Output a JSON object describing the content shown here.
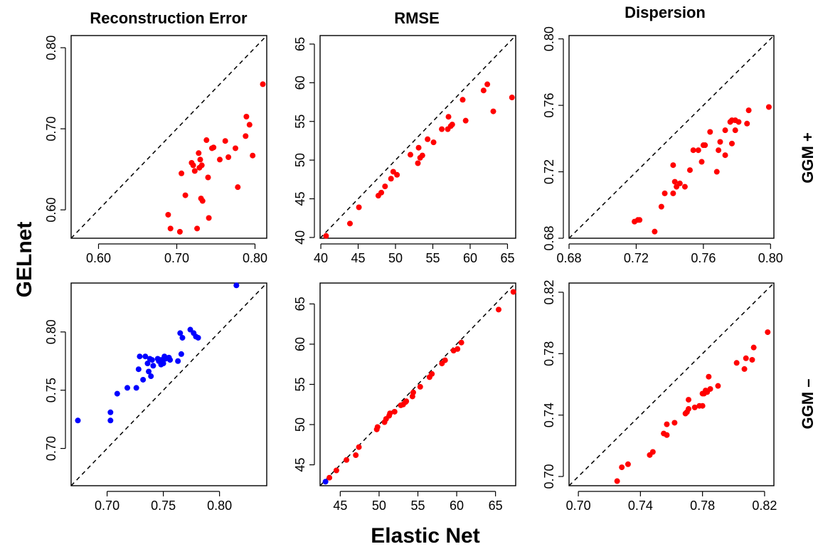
{
  "figure": {
    "xlabel": "Elastic Net",
    "ylabel": "GELnet",
    "column_titles": [
      "Reconstruction Error",
      "RMSE",
      "Dispersion"
    ],
    "row_labels": [
      "GGM +",
      "GGM –"
    ]
  },
  "colors": {
    "red": "#ff0000",
    "blue": "#0000ff"
  },
  "chart_data": [
    {
      "type": "scatter",
      "title": "Reconstruction Error",
      "row": "GGM +",
      "xlim": [
        0.565,
        0.815
      ],
      "ylim": [
        0.565,
        0.815
      ],
      "xticks": [
        0.6,
        0.7,
        0.8
      ],
      "yticks": [
        0.6,
        0.7,
        0.8
      ],
      "xtick_labels": [
        "0.60",
        "0.70",
        "0.80"
      ],
      "ytick_labels": [
        "0.60",
        "0.70",
        "0.80"
      ],
      "diagonal": true,
      "color": "#ff0000",
      "points": [
        [
          0.689,
          0.594
        ],
        [
          0.692,
          0.577
        ],
        [
          0.704,
          0.573
        ],
        [
          0.706,
          0.645
        ],
        [
          0.711,
          0.618
        ],
        [
          0.719,
          0.658
        ],
        [
          0.721,
          0.655
        ],
        [
          0.723,
          0.648
        ],
        [
          0.726,
          0.577
        ],
        [
          0.728,
          0.67
        ],
        [
          0.729,
          0.652
        ],
        [
          0.73,
          0.662
        ],
        [
          0.731,
          0.614
        ],
        [
          0.732,
          0.655
        ],
        [
          0.733,
          0.611
        ],
        [
          0.738,
          0.686
        ],
        [
          0.74,
          0.64
        ],
        [
          0.741,
          0.59
        ],
        [
          0.745,
          0.676
        ],
        [
          0.747,
          0.677
        ],
        [
          0.755,
          0.662
        ],
        [
          0.762,
          0.685
        ],
        [
          0.766,
          0.665
        ],
        [
          0.775,
          0.676
        ],
        [
          0.778,
          0.628
        ],
        [
          0.788,
          0.691
        ],
        [
          0.789,
          0.715
        ],
        [
          0.793,
          0.705
        ],
        [
          0.797,
          0.667
        ],
        [
          0.81,
          0.755
        ]
      ]
    },
    {
      "type": "scatter",
      "title": "RMSE",
      "row": "GGM +",
      "xlim": [
        39.9,
        66.1
      ],
      "ylim": [
        39.9,
        66.1
      ],
      "xticks": [
        40,
        45,
        50,
        55,
        60,
        65
      ],
      "yticks": [
        40,
        45,
        50,
        55,
        60,
        65
      ],
      "xtick_labels": [
        "40",
        "45",
        "50",
        "55",
        "60",
        "65"
      ],
      "ytick_labels": [
        "40",
        "45",
        "50",
        "55",
        "60",
        "65"
      ],
      "diagonal": true,
      "color": "#ff0000",
      "points": [
        [
          40.7,
          40.2
        ],
        [
          43.9,
          41.8
        ],
        [
          45.1,
          43.9
        ],
        [
          47.7,
          45.4
        ],
        [
          48.1,
          45.8
        ],
        [
          48.6,
          46.6
        ],
        [
          49.4,
          47.6
        ],
        [
          49.7,
          48.5
        ],
        [
          50.2,
          48.1
        ],
        [
          52.0,
          50.7
        ],
        [
          53.0,
          49.6
        ],
        [
          53.1,
          51.6
        ],
        [
          53.3,
          50.3
        ],
        [
          53.6,
          50.6
        ],
        [
          54.3,
          52.7
        ],
        [
          55.1,
          52.3
        ],
        [
          56.2,
          54.0
        ],
        [
          57.0,
          54.0
        ],
        [
          57.1,
          55.6
        ],
        [
          57.4,
          54.4
        ],
        [
          57.6,
          54.6
        ],
        [
          59.0,
          57.8
        ],
        [
          59.4,
          55.1
        ],
        [
          61.8,
          59.0
        ],
        [
          62.3,
          59.8
        ],
        [
          63.1,
          56.3
        ],
        [
          65.6,
          58.1
        ]
      ]
    },
    {
      "type": "scatter",
      "title": "Dispersion",
      "row": "GGM +",
      "xlim": [
        0.68,
        0.802
      ],
      "ylim": [
        0.68,
        0.802
      ],
      "xticks": [
        0.68,
        0.72,
        0.76,
        0.8
      ],
      "yticks": [
        0.68,
        0.72,
        0.76,
        0.8
      ],
      "xtick_labels": [
        "0.68",
        "0.72",
        "0.76",
        "0.80"
      ],
      "ytick_labels": [
        "0.68",
        "0.72",
        "0.76",
        "0.80"
      ],
      "diagonal": true,
      "color": "#ff0000",
      "points": [
        [
          0.719,
          0.69
        ],
        [
          0.721,
          0.691
        ],
        [
          0.722,
          0.691
        ],
        [
          0.731,
          0.684
        ],
        [
          0.735,
          0.699
        ],
        [
          0.737,
          0.707
        ],
        [
          0.742,
          0.707
        ],
        [
          0.742,
          0.724
        ],
        [
          0.743,
          0.714
        ],
        [
          0.744,
          0.711
        ],
        [
          0.746,
          0.713
        ],
        [
          0.749,
          0.711
        ],
        [
          0.752,
          0.721
        ],
        [
          0.754,
          0.733
        ],
        [
          0.757,
          0.733
        ],
        [
          0.759,
          0.726
        ],
        [
          0.76,
          0.736
        ],
        [
          0.761,
          0.736
        ],
        [
          0.764,
          0.744
        ],
        [
          0.768,
          0.72
        ],
        [
          0.769,
          0.733
        ],
        [
          0.77,
          0.738
        ],
        [
          0.773,
          0.73
        ],
        [
          0.773,
          0.745
        ],
        [
          0.776,
          0.75
        ],
        [
          0.777,
          0.751
        ],
        [
          0.777,
          0.737
        ],
        [
          0.779,
          0.745
        ],
        [
          0.779,
          0.751
        ],
        [
          0.781,
          0.75
        ],
        [
          0.786,
          0.749
        ],
        [
          0.787,
          0.757
        ],
        [
          0.799,
          0.759
        ]
      ]
    },
    {
      "type": "scatter",
      "title": "Reconstruction Error",
      "row": "GGM –",
      "xlim": [
        0.668,
        0.842
      ],
      "ylim": [
        0.668,
        0.842
      ],
      "xticks": [
        0.7,
        0.75,
        0.8
      ],
      "yticks": [
        0.7,
        0.75,
        0.8
      ],
      "xtick_labels": [
        "0.70",
        "0.75",
        "0.80"
      ],
      "ytick_labels": [
        "0.70",
        "0.75",
        "0.80"
      ],
      "diagonal": true,
      "color": "#0000ff",
      "points": [
        [
          0.674,
          0.724
        ],
        [
          0.703,
          0.724
        ],
        [
          0.703,
          0.731
        ],
        [
          0.709,
          0.747
        ],
        [
          0.718,
          0.752
        ],
        [
          0.726,
          0.752
        ],
        [
          0.728,
          0.768
        ],
        [
          0.729,
          0.779
        ],
        [
          0.732,
          0.759
        ],
        [
          0.734,
          0.779
        ],
        [
          0.736,
          0.773
        ],
        [
          0.737,
          0.766
        ],
        [
          0.738,
          0.777
        ],
        [
          0.739,
          0.762
        ],
        [
          0.74,
          0.776
        ],
        [
          0.741,
          0.771
        ],
        [
          0.745,
          0.777
        ],
        [
          0.746,
          0.775
        ],
        [
          0.748,
          0.772
        ],
        [
          0.748,
          0.776
        ],
        [
          0.75,
          0.773
        ],
        [
          0.751,
          0.779
        ],
        [
          0.752,
          0.777
        ],
        [
          0.755,
          0.778
        ],
        [
          0.756,
          0.776
        ],
        [
          0.763,
          0.775
        ],
        [
          0.765,
          0.799
        ],
        [
          0.766,
          0.781
        ],
        [
          0.767,
          0.795
        ],
        [
          0.774,
          0.802
        ],
        [
          0.777,
          0.799
        ],
        [
          0.779,
          0.796
        ],
        [
          0.781,
          0.795
        ],
        [
          0.815,
          0.84
        ]
      ]
    },
    {
      "type": "scatter",
      "title": "RMSE",
      "row": "GGM –",
      "xlim": [
        42.4,
        67.6
      ],
      "ylim": [
        42.4,
        67.6
      ],
      "xticks": [
        45,
        50,
        55,
        60,
        65
      ],
      "yticks": [
        45,
        50,
        55,
        60,
        65
      ],
      "xtick_labels": [
        "45",
        "50",
        "55",
        "60",
        "65"
      ],
      "ytick_labels": [
        "45",
        "50",
        "55",
        "60",
        "65"
      ],
      "diagonal": true,
      "color": "#ff0000",
      "points": [
        [
          43.1,
          42.9,
          "#0000ff"
        ],
        [
          43.6,
          43.4
        ],
        [
          44.5,
          44.3
        ],
        [
          45.8,
          45.6
        ],
        [
          47.0,
          46.2
        ],
        [
          47.4,
          47.2
        ],
        [
          49.7,
          49.4
        ],
        [
          49.8,
          49.7
        ],
        [
          50.7,
          50.3
        ],
        [
          50.9,
          50.7
        ],
        [
          51.3,
          51.1
        ],
        [
          51.4,
          51.4
        ],
        [
          52.0,
          51.6
        ],
        [
          52.8,
          52.4
        ],
        [
          53.1,
          52.5
        ],
        [
          53.4,
          52.8
        ],
        [
          53.5,
          52.9
        ],
        [
          54.3,
          53.5
        ],
        [
          54.4,
          54.0
        ],
        [
          55.3,
          54.7
        ],
        [
          56.5,
          55.9
        ],
        [
          56.8,
          56.3
        ],
        [
          58.1,
          57.6
        ],
        [
          58.5,
          58.0
        ],
        [
          59.6,
          59.2
        ],
        [
          60.1,
          59.4
        ],
        [
          60.6,
          60.2
        ],
        [
          65.4,
          64.3
        ],
        [
          67.3,
          66.5
        ]
      ]
    },
    {
      "type": "scatter",
      "title": "Dispersion",
      "row": "GGM –",
      "xlim": [
        0.694,
        0.826
      ],
      "ylim": [
        0.694,
        0.826
      ],
      "xticks": [
        0.7,
        0.74,
        0.78,
        0.82
      ],
      "yticks": [
        0.7,
        0.74,
        0.78,
        0.82
      ],
      "xtick_labels": [
        "0.70",
        "0.74",
        "0.78",
        "0.82"
      ],
      "ytick_labels": [
        "0.70",
        "0.74",
        "0.78",
        "0.82"
      ],
      "diagonal": true,
      "color": "#ff0000",
      "points": [
        [
          0.725,
          0.697
        ],
        [
          0.728,
          0.706
        ],
        [
          0.732,
          0.708
        ],
        [
          0.746,
          0.714
        ],
        [
          0.748,
          0.716
        ],
        [
          0.755,
          0.728
        ],
        [
          0.757,
          0.727
        ],
        [
          0.757,
          0.734
        ],
        [
          0.762,
          0.735
        ],
        [
          0.769,
          0.741
        ],
        [
          0.77,
          0.742
        ],
        [
          0.771,
          0.744
        ],
        [
          0.771,
          0.75
        ],
        [
          0.775,
          0.745
        ],
        [
          0.778,
          0.746
        ],
        [
          0.78,
          0.746
        ],
        [
          0.78,
          0.754
        ],
        [
          0.781,
          0.754
        ],
        [
          0.782,
          0.756
        ],
        [
          0.783,
          0.755
        ],
        [
          0.784,
          0.765
        ],
        [
          0.785,
          0.757
        ],
        [
          0.79,
          0.759
        ],
        [
          0.802,
          0.774
        ],
        [
          0.807,
          0.77
        ],
        [
          0.808,
          0.777
        ],
        [
          0.812,
          0.776
        ],
        [
          0.813,
          0.784
        ],
        [
          0.822,
          0.794
        ]
      ]
    }
  ]
}
